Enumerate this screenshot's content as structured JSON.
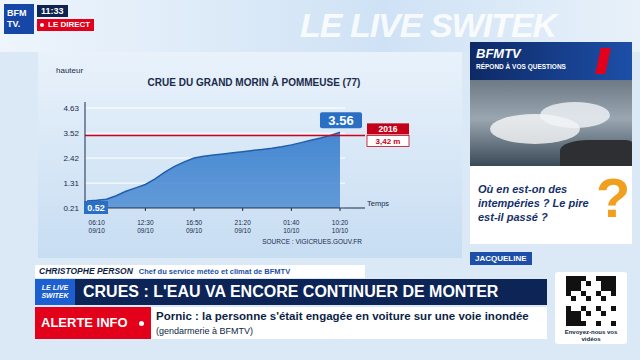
{
  "header": {
    "logo": [
      "BFM",
      "TV."
    ],
    "time": "11:33",
    "live": "LE DIRECT",
    "backdrop": "LE LIVE SWITEK"
  },
  "chart_data": {
    "type": "area",
    "title": "CRUE DU GRAND MORIN À POMMEUSE (77)",
    "y_label": "hauteur",
    "x_label": "Temps",
    "source": "SOURCE : VIGICRUES.GOUV.FR",
    "categories": [
      null,
      "06:10 09/10",
      null,
      null,
      null,
      null,
      "12:30 09/10",
      null,
      null,
      null,
      null,
      "16:50 09/10",
      null,
      null,
      null,
      null,
      "21:20 09/10",
      null,
      null,
      null,
      null,
      "01:40 10/10",
      null,
      null,
      null,
      null,
      "10:20 10/10"
    ],
    "values": [
      0.52,
      0.55,
      0.6,
      0.75,
      0.95,
      1.1,
      1.25,
      1.5,
      1.8,
      2.05,
      2.25,
      2.42,
      2.5,
      2.55,
      2.6,
      2.65,
      2.7,
      2.75,
      2.8,
      2.85,
      2.92,
      3.0,
      3.1,
      3.2,
      3.3,
      3.42,
      3.56
    ],
    "value_labels": [
      "0.52",
      null,
      null,
      null,
      null,
      null,
      null,
      null,
      null,
      null,
      null,
      null,
      null,
      null,
      null,
      null,
      null,
      null,
      null,
      null,
      null,
      null,
      null,
      null,
      null,
      null,
      "3.56"
    ],
    "color": "#3d82cf",
    "ylim": [
      0.21,
      4.63
    ],
    "yticks": [
      0.21,
      1.31,
      2.42,
      3.52,
      4.63
    ],
    "grid": true,
    "reference_line": {
      "value": 3.42,
      "label": "2016",
      "value_label": "3,42 m"
    }
  },
  "side_panel": {
    "brand": "BFMTV",
    "tagline": "RÉPOND À VOS QUESTIONS",
    "question": "Où en est-on des intempéries ? Le pire est-il passé ?",
    "mark": "?",
    "viewer": "JACQUELINE"
  },
  "lower_third": {
    "name": "CHRISTOPHE PERSON",
    "role": "Chef du service météo et climat de BFMTV",
    "show": "LE LIVE SWITEK",
    "headline": "CRUES : L'EAU VA ENCORE CONTINUER DE MONTER",
    "alert_label": "ALERTE INFO",
    "alert": "Pornic : la personne s'était engagée en voiture sur une voie inondée",
    "alert_source": "(gendarmerie à BFMTV)",
    "qr_caption": "Envoyez-nous vos vidéos"
  }
}
